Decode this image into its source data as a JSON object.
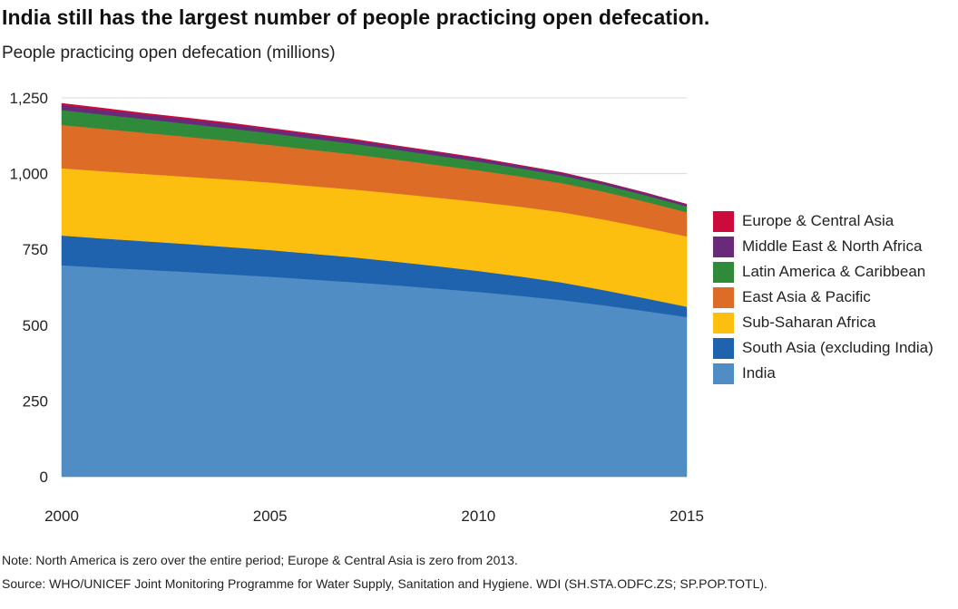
{
  "title": "India still has the largest number of people practicing open defecation.",
  "subtitle": "People practicing open defecation (millions)",
  "note": "Note: North America is zero over the entire period; Europe & Central Asia is zero from 2013.",
  "source": "Source: WHO/UNICEF Joint Monitoring Programme for Water Supply, Sanitation and Hygiene. WDI (SH.STA.ODFC.ZS; SP.POP.TOTL).",
  "chart_data": {
    "type": "area",
    "stacked": true,
    "title": "India still has the largest number of people practicing open defecation.",
    "ylabel": "People practicing open defecation (millions)",
    "xlim": [
      2000,
      2015
    ],
    "ylim": [
      0,
      1250
    ],
    "x_ticks": [
      2000,
      2005,
      2010,
      2015
    ],
    "x_tick_labels": [
      "2000",
      "2005",
      "2010",
      "2015"
    ],
    "y_ticks": [
      0,
      250,
      500,
      750,
      1000,
      1250
    ],
    "y_tick_labels": [
      "0",
      "250",
      "500",
      "750",
      "1,000",
      "1,250"
    ],
    "grid": "horizontal",
    "legend_position": "right",
    "x": [
      2000,
      2001,
      2002,
      2003,
      2004,
      2005,
      2006,
      2007,
      2008,
      2009,
      2010,
      2011,
      2012,
      2013,
      2014,
      2015
    ],
    "series": [
      {
        "name": "India",
        "color": "#4f8dc4",
        "values": [
          698,
          690,
          683,
          676,
          668,
          660,
          651,
          642,
          632,
          621,
          610,
          597,
          583,
          566,
          547,
          527
        ]
      },
      {
        "name": "South Asia (excluding India)",
        "color": "#1f62ad",
        "values": [
          98,
          96,
          94,
          92,
          90,
          88,
          85,
          82,
          78,
          74,
          69,
          64,
          58,
          50,
          42,
          34
        ]
      },
      {
        "name": "Sub-Saharan Africa",
        "color": "#fcbf10",
        "values": [
          222,
          222,
          222,
          222,
          223,
          223,
          223,
          224,
          225,
          226,
          228,
          230,
          232,
          233,
          233,
          232
        ]
      },
      {
        "name": "East Asia & Pacific",
        "color": "#dd6d26",
        "values": [
          143,
          140,
          136,
          132,
          128,
          124,
          120,
          116,
          112,
          108,
          104,
          100,
          96,
          92,
          86,
          80
        ]
      },
      {
        "name": "Latin America & Caribbean",
        "color": "#2f8a3a",
        "values": [
          49,
          47,
          45,
          43,
          41,
          39,
          37,
          35,
          33,
          31,
          29,
          27,
          25,
          23,
          21,
          19
        ]
      },
      {
        "name": "Middle East & North Africa",
        "color": "#6a2a7a",
        "values": [
          17,
          16,
          15,
          15,
          14,
          13,
          13,
          12,
          11,
          11,
          10,
          9,
          9,
          8,
          8,
          7
        ]
      },
      {
        "name": "Europe & Central Asia",
        "color": "#cc0a3c",
        "values": [
          5,
          5,
          4,
          4,
          4,
          3,
          3,
          3,
          2,
          2,
          2,
          1,
          1,
          0,
          0,
          0
        ]
      },
      {
        "name": "North America",
        "color": "#999999",
        "values": [
          0,
          0,
          0,
          0,
          0,
          0,
          0,
          0,
          0,
          0,
          0,
          0,
          0,
          0,
          0,
          0
        ]
      }
    ],
    "legend_order": [
      "Europe & Central Asia",
      "Middle East & North Africa",
      "Latin America & Caribbean",
      "East Asia & Pacific",
      "Sub-Saharan Africa",
      "South Asia (excluding India)",
      "India"
    ]
  }
}
